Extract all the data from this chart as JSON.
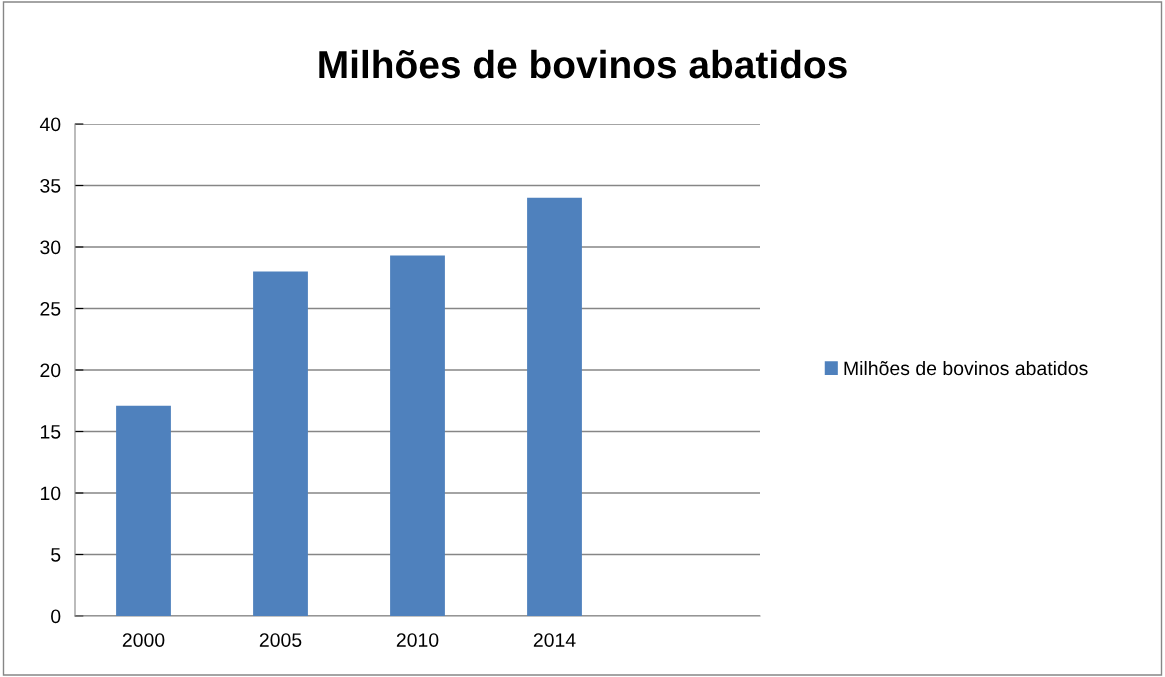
{
  "chart_data": {
    "type": "bar",
    "title": "Milhões de bovinos abatidos",
    "categories": [
      "2000",
      "2005",
      "2010",
      "2014",
      null
    ],
    "series": [
      {
        "name": "Milhões de bovinos abatidos",
        "color": "#4f81bd",
        "values": [
          17.1,
          28,
          29.3,
          34,
          null
        ]
      }
    ],
    "ylim": [
      0,
      40
    ],
    "yticks": [
      0,
      5,
      10,
      15,
      20,
      25,
      30,
      35,
      40
    ],
    "grid": "y",
    "legend": "right"
  }
}
